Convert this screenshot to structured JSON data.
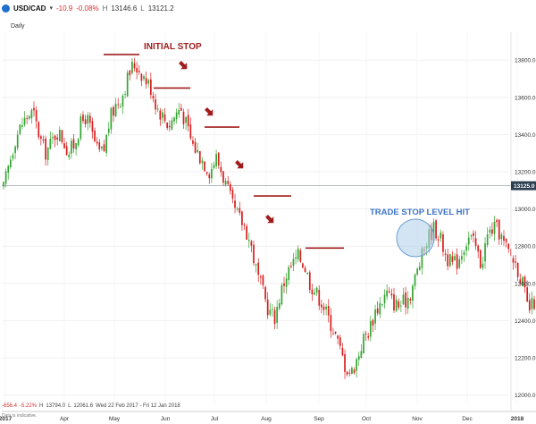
{
  "header": {
    "symbol": "USD/CAD",
    "change": "-10.9",
    "change_pct": "-0.08%",
    "high_label": "H",
    "high": "13146.6",
    "low_label": "L",
    "low": "13121.2"
  },
  "interval": "Daily",
  "footer": {
    "change": "-656.4",
    "change_pct": "-5.22%",
    "high_label": "H",
    "high": "13794.0",
    "low_label": "L",
    "low": "12061.6",
    "range": "Wed 22 Feb 2017 - Fri 12 Jan 2018",
    "note": "Data is indicative."
  },
  "colors": {
    "up": "#33a532",
    "down": "#d81e1e",
    "annotation": "#a11d1d",
    "trade_label": "#3d74c8",
    "circle_fill": "#aecde8",
    "circle_stroke": "#6a9fd4",
    "price_tag_bg": "#2c3e50"
  },
  "chart_data": {
    "type": "candlestick",
    "interval": "daily",
    "x_axis": {
      "ticks": [
        "2017",
        "Apr",
        "May",
        "Jun",
        "Jul",
        "Aug",
        "Sep",
        "Oct",
        "Nov",
        "Dec",
        "2018"
      ]
    },
    "y_axis": {
      "ticks": [
        "13800.0",
        "13600.0",
        "13400.0",
        "13200.0",
        "13000.0",
        "12800.0",
        "12600.0",
        "12400.0",
        "12200.0",
        "12000.0"
      ],
      "range": [
        11950,
        13950
      ]
    },
    "current_price": {
      "label": "13125.0",
      "value": 13125
    },
    "close_path": [
      13110,
      13250,
      13380,
      13450,
      13500,
      13520,
      13400,
      13300,
      13350,
      13420,
      13380,
      13300,
      13350,
      13450,
      13500,
      13400,
      13300,
      13310,
      13480,
      13560,
      13600,
      13700,
      13780,
      13750,
      13700,
      13650,
      13550,
      13500,
      13450,
      13500,
      13550,
      13450,
      13350,
      13300,
      13250,
      13200,
      13280,
      13200,
      13100,
      13000,
      12950,
      12900,
      12800,
      12650,
      12550,
      12450,
      12420,
      12550,
      12650,
      12700,
      12750,
      12700,
      12600,
      12550,
      12500,
      12420,
      12350,
      12250,
      12150,
      12120,
      12200,
      12300,
      12350,
      12450,
      12500,
      12550,
      12500,
      12480,
      12500,
      12550,
      12650,
      12750,
      12850,
      12900,
      12850,
      12750,
      12700,
      12720,
      12800,
      12850,
      12800,
      12700,
      12850,
      12900,
      12880,
      12800,
      12750,
      12700,
      12600,
      12450,
      12500
    ],
    "annotations": {
      "initial_stop": "INITIAL STOP",
      "trade_stop": "TRADE STOP LEVEL HIT"
    },
    "stop_levels": [
      {
        "value": 13830,
        "from": "Apr",
        "to": "May"
      },
      {
        "value": 13650,
        "from": "May",
        "to": "Jun"
      },
      {
        "value": 13440,
        "from": "Jun",
        "to": "Jul"
      },
      {
        "value": 13070,
        "from": "Jul",
        "to": "Aug"
      },
      {
        "value": 12790,
        "from": "Aug",
        "to": "Sep"
      }
    ]
  }
}
